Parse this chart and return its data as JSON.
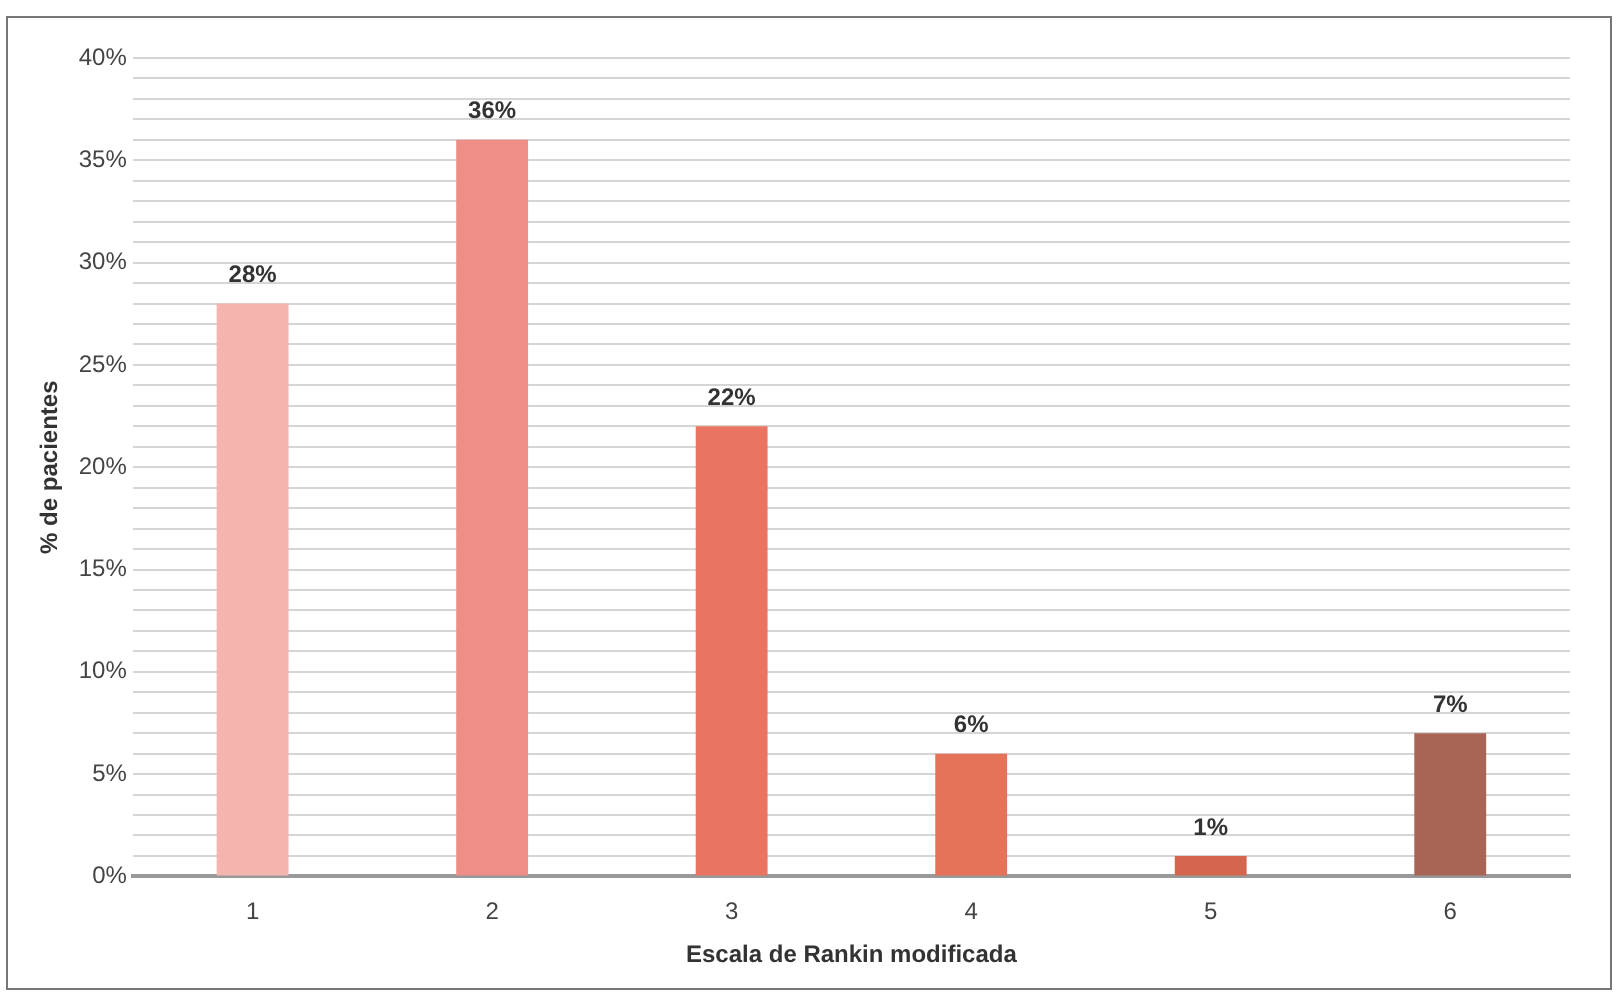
{
  "chart_data": {
    "type": "bar",
    "xlabel": "Escala de Rankin modificada",
    "ylabel": "% de pacientes",
    "categories": [
      "1",
      "2",
      "3",
      "4",
      "5",
      "6"
    ],
    "values": [
      28,
      36,
      22,
      6,
      1,
      7
    ],
    "value_labels": [
      "28%",
      "36%",
      "22%",
      "6%",
      "1%",
      "7%"
    ],
    "colors": [
      "#f4b5ae",
      "#ee8e86",
      "#ea7462",
      "#e57359",
      "#d4664f",
      "#a86454"
    ],
    "ylim": [
      0,
      40
    ],
    "yticks": [
      {
        "value": 0,
        "label": "0%"
      },
      {
        "value": 1,
        "label": null
      },
      {
        "value": 2,
        "label": null
      },
      {
        "value": 3,
        "label": null
      },
      {
        "value": 4,
        "label": null
      },
      {
        "value": 5,
        "label": "5%"
      },
      {
        "value": 6,
        "label": null
      },
      {
        "value": 7,
        "label": null
      },
      {
        "value": 8,
        "label": null
      },
      {
        "value": 9,
        "label": null
      },
      {
        "value": 10,
        "label": "10%"
      },
      {
        "value": 11,
        "label": null
      },
      {
        "value": 12,
        "label": null
      },
      {
        "value": 13,
        "label": null
      },
      {
        "value": 14,
        "label": null
      },
      {
        "value": 15,
        "label": "15%"
      },
      {
        "value": 16,
        "label": null
      },
      {
        "value": 17,
        "label": null
      },
      {
        "value": 18,
        "label": null
      },
      {
        "value": 19,
        "label": null
      },
      {
        "value": 20,
        "label": "20%"
      },
      {
        "value": 21,
        "label": null
      },
      {
        "value": 22,
        "label": null
      },
      {
        "value": 23,
        "label": null
      },
      {
        "value": 24,
        "label": null
      },
      {
        "value": 25,
        "label": "25%"
      },
      {
        "value": 26,
        "label": null
      },
      {
        "value": 27,
        "label": null
      },
      {
        "value": 28,
        "label": null
      },
      {
        "value": 29,
        "label": null
      },
      {
        "value": 30,
        "label": "30%"
      },
      {
        "value": 31,
        "label": null
      },
      {
        "value": 32,
        "label": null
      },
      {
        "value": 33,
        "label": null
      },
      {
        "value": 34,
        "label": null
      },
      {
        "value": 35,
        "label": "35%"
      },
      {
        "value": 36,
        "label": null
      },
      {
        "value": 37,
        "label": null
      },
      {
        "value": 38,
        "label": null
      },
      {
        "value": 39,
        "label": null
      },
      {
        "value": 40,
        "label": "40%"
      }
    ],
    "grid": "y"
  }
}
